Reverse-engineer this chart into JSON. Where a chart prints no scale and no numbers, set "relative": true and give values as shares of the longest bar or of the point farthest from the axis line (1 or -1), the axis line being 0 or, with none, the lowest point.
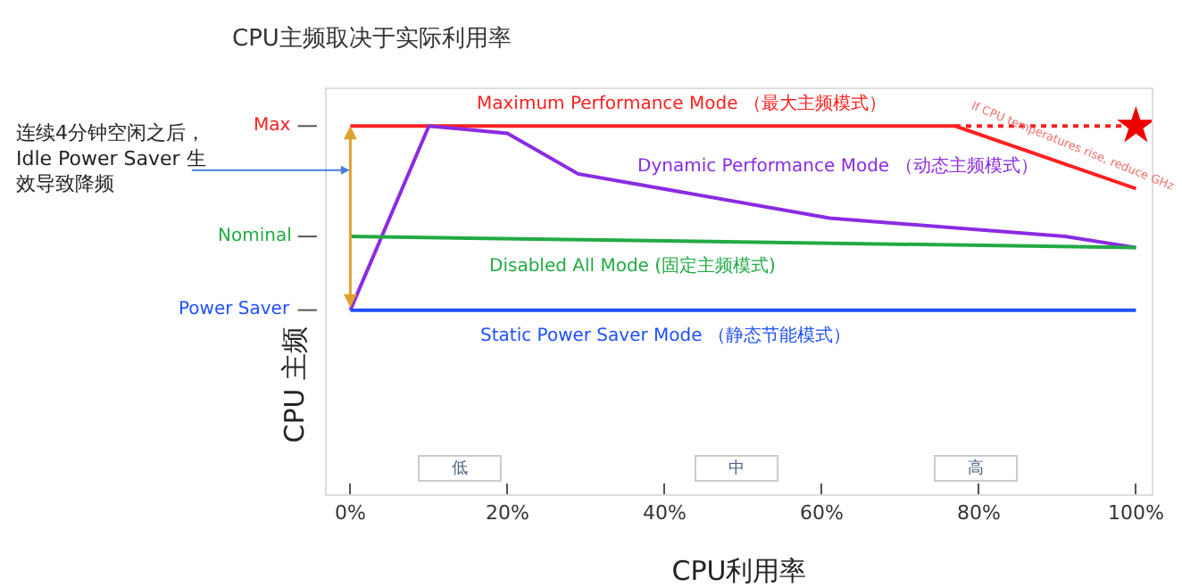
{
  "chart_data": {
    "type": "line",
    "title": "CPU主频取决于实际利用率",
    "xlabel": "CPU利用率",
    "ylabel": "CPU 主频",
    "xlim": [
      -3,
      102
    ],
    "xticks": [
      {
        "value": 0,
        "label": "0%"
      },
      {
        "value": 20,
        "label": "20%"
      },
      {
        "value": 40,
        "label": "40%"
      },
      {
        "value": 60,
        "label": "60%"
      },
      {
        "value": 80,
        "label": "80%"
      },
      {
        "value": 100,
        "label": "100%"
      }
    ],
    "relative": true,
    "grid": false,
    "legend": false,
    "marker": "none",
    "line_style": "solid",
    "series": [
      {
        "name": "Maximum Performance Mode （最大主频模式）",
        "color": "#ff2020",
        "x": [
          0,
          77,
          100
        ],
        "values": [
          1,
          1,
          0.83
        ]
      },
      {
        "name": "Dynamic Performance Mode （动态主频模式）",
        "color": "#8a2be2",
        "x": [
          0,
          10,
          20,
          29,
          61,
          91,
          100
        ],
        "values": [
          0.5,
          1,
          0.98,
          0.87,
          0.75,
          0.7,
          0.67
        ]
      },
      {
        "name": "Disabled All Mode (固定主频模式)",
        "color": "#22aa44",
        "x": [
          0,
          100
        ],
        "values": [
          0.7,
          0.67
        ]
      },
      {
        "name": "Static Power Saver Mode （静态节能模式）",
        "color": "#2050ff",
        "x": [
          0,
          100
        ],
        "values": [
          0.5,
          0.5
        ]
      },
      {
        "color": "#ff2020",
        "x": [
          77,
          100
        ],
        "values": [
          1,
          1
        ],
        "line_style": "dotted"
      },
      {
        "type": "scatter",
        "color": "#ee0000",
        "x": [
          100
        ],
        "values": [
          1
        ],
        "marker": "star"
      }
    ],
    "annotations": [
      "连续4分钟空闲之后，Idle Power Saver 生效导致降频",
      "If CPU temperatures rise, reduce GHz",
      "低",
      "中",
      "高",
      "Max",
      "Nominal",
      "Power Saver"
    ]
  }
}
